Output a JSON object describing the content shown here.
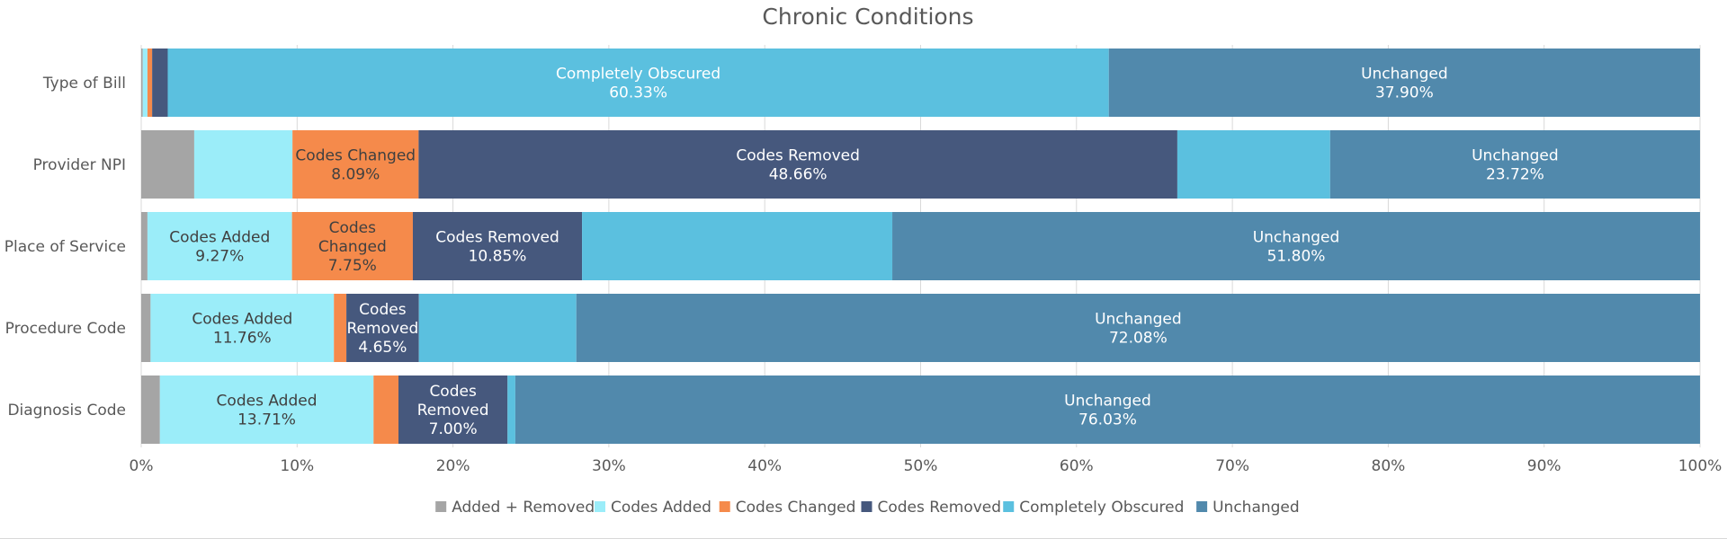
{
  "chart_data": {
    "type": "bar",
    "orientation": "horizontal",
    "stacked": "percent",
    "title": "Chronic Conditions",
    "categories": [
      "Type of Bill",
      "Provider NPI",
      "Place of Service",
      "Procedure Code",
      "Diagnosis Code"
    ],
    "series": [
      {
        "name": "Added + Removed",
        "color": "#a5a5a5",
        "values": [
          0.1,
          3.4,
          0.4,
          0.6,
          1.2
        ]
      },
      {
        "name": "Codes Added",
        "color": "#9bedf9",
        "values": [
          0.3,
          6.3,
          9.27,
          11.76,
          13.71
        ]
      },
      {
        "name": "Codes Changed",
        "color": "#f58a4b",
        "values": [
          0.3,
          8.09,
          7.75,
          0.8,
          1.6
        ]
      },
      {
        "name": "Codes Removed",
        "color": "#46587d",
        "values": [
          1.0,
          48.66,
          10.85,
          4.65,
          7.0
        ]
      },
      {
        "name": "Completely Obscured",
        "color": "#5bc0df",
        "values": [
          60.33,
          9.8,
          19.9,
          10.1,
          0.5
        ]
      },
      {
        "name": "Unchanged",
        "color": "#5189ac",
        "values": [
          37.9,
          23.72,
          51.8,
          72.08,
          76.03
        ]
      }
    ],
    "labels": [
      {
        "category": 0,
        "series": 4,
        "lines": [
          "Completely Obscured",
          "60.33%"
        ]
      },
      {
        "category": 0,
        "series": 5,
        "lines": [
          "Unchanged",
          "37.90%"
        ]
      },
      {
        "category": 1,
        "series": 2,
        "lines": [
          "Codes Changed",
          "8.09%"
        ]
      },
      {
        "category": 1,
        "series": 3,
        "lines": [
          "Codes Removed",
          "48.66%"
        ]
      },
      {
        "category": 1,
        "series": 5,
        "lines": [
          "Unchanged",
          "23.72%"
        ]
      },
      {
        "category": 2,
        "series": 1,
        "lines": [
          "Codes Added",
          "9.27%"
        ]
      },
      {
        "category": 2,
        "series": 2,
        "lines": [
          "Codes",
          "Changed",
          "7.75%"
        ]
      },
      {
        "category": 2,
        "series": 3,
        "lines": [
          "Codes Removed",
          "10.85%"
        ]
      },
      {
        "category": 2,
        "series": 5,
        "lines": [
          "Unchanged",
          "51.80%"
        ]
      },
      {
        "category": 3,
        "series": 1,
        "lines": [
          "Codes Added",
          "11.76%"
        ]
      },
      {
        "category": 3,
        "series": 3,
        "lines": [
          "Codes",
          "Removed",
          "4.65%"
        ]
      },
      {
        "category": 3,
        "series": 5,
        "lines": [
          "Unchanged",
          "72.08%"
        ]
      },
      {
        "category": 4,
        "series": 1,
        "lines": [
          "Codes Added",
          "13.71%"
        ]
      },
      {
        "category": 4,
        "series": 3,
        "lines": [
          "Codes",
          "Removed",
          "7.00%"
        ]
      },
      {
        "category": 4,
        "series": 5,
        "lines": [
          "Unchanged",
          "76.03%"
        ]
      }
    ],
    "xlim": [
      0,
      100
    ],
    "x_ticks": [
      "0%",
      "10%",
      "20%",
      "30%",
      "40%",
      "50%",
      "60%",
      "70%",
      "80%",
      "90%",
      "100%"
    ],
    "grid": true,
    "legend_position": "bottom"
  }
}
